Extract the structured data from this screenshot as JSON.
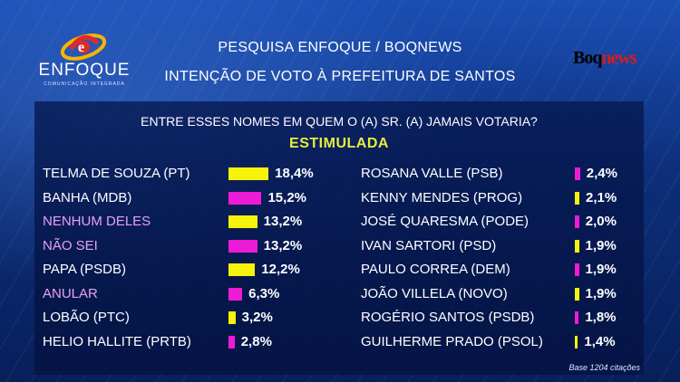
{
  "header": {
    "logo_name": "ENFOQUE",
    "logo_tagline": "COMUNICAÇÃO INTEGRADA",
    "title_line1": "PESQUISA ENFOQUE / BOQNEWS",
    "title_line2": "INTENÇÃO DE VOTO À PREFEITURA DE SANTOS",
    "brand_part1": "Boq",
    "brand_part2": "news"
  },
  "colors": {
    "yellow": "#f6f20a",
    "magenta": "#ee1bd6",
    "pink_label": "#e7a0f0",
    "white_label": "#ffffff",
    "brand_red": "#d91c1c"
  },
  "chart_data": {
    "type": "bar",
    "title": "ENTRE ESSES NOMES EM QUEM O (A) SR. (A)  JAMAIS VOTARIA?",
    "subtitle": "ESTIMULADA",
    "orientation": "horizontal",
    "value_unit": "%",
    "footnote": "Base 1204 citações",
    "columns": [
      {
        "items": [
          {
            "label": "TELMA DE SOUZA (PT)",
            "value": 18.4,
            "value_label": "18,4%",
            "bar_color": "yellow",
            "label_color": "white"
          },
          {
            "label": "BANHA (MDB)",
            "value": 15.2,
            "value_label": "15,2%",
            "bar_color": "magenta",
            "label_color": "white"
          },
          {
            "label": "NENHUM DELES",
            "value": 13.2,
            "value_label": "13,2%",
            "bar_color": "yellow",
            "label_color": "pink"
          },
          {
            "label": "NÃO SEI",
            "value": 13.2,
            "value_label": "13,2%",
            "bar_color": "magenta",
            "label_color": "pink"
          },
          {
            "label": "PAPA (PSDB)",
            "value": 12.2,
            "value_label": "12,2%",
            "bar_color": "yellow",
            "label_color": "white"
          },
          {
            "label": "ANULAR",
            "value": 6.3,
            "value_label": "6,3%",
            "bar_color": "magenta",
            "label_color": "pink"
          },
          {
            "label": "LOBÃO (PTC)",
            "value": 3.2,
            "value_label": "3,2%",
            "bar_color": "yellow",
            "label_color": "white"
          },
          {
            "label": "HELIO HALLITE (PRTB)",
            "value": 2.8,
            "value_label": "2,8%",
            "bar_color": "magenta",
            "label_color": "white"
          }
        ]
      },
      {
        "items": [
          {
            "label": "ROSANA VALLE (PSB)",
            "value": 2.4,
            "value_label": "2,4%",
            "bar_color": "magenta",
            "label_color": "white"
          },
          {
            "label": "KENNY MENDES (PROG)",
            "value": 2.1,
            "value_label": "2,1%",
            "bar_color": "yellow",
            "label_color": "white"
          },
          {
            "label": "JOSÉ QUARESMA (PODE)",
            "value": 2.0,
            "value_label": "2,0%",
            "bar_color": "magenta",
            "label_color": "white"
          },
          {
            "label": "IVAN SARTORI (PSD)",
            "value": 1.9,
            "value_label": "1,9%",
            "bar_color": "yellow",
            "label_color": "white"
          },
          {
            "label": "PAULO CORREA (DEM)",
            "value": 1.9,
            "value_label": "1,9%",
            "bar_color": "magenta",
            "label_color": "white"
          },
          {
            "label": "JOÃO VILLELA (NOVO)",
            "value": 1.9,
            "value_label": "1,9%",
            "bar_color": "yellow",
            "label_color": "white"
          },
          {
            "label": "ROGÉRIO SANTOS (PSDB)",
            "value": 1.8,
            "value_label": "1,8%",
            "bar_color": "magenta",
            "label_color": "white"
          },
          {
            "label": "GUILHERME PRADO (PSOL)",
            "value": 1.4,
            "value_label": "1,4%",
            "bar_color": "yellow",
            "label_color": "white"
          }
        ]
      }
    ]
  }
}
